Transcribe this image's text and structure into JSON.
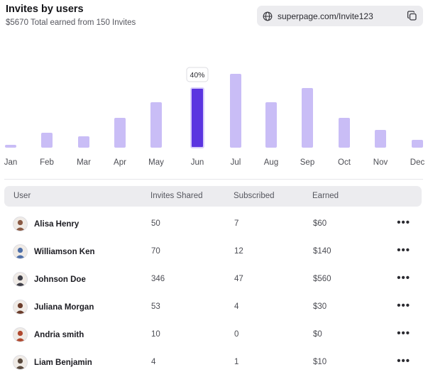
{
  "header": {
    "title": "Invites by users",
    "subtitle": "$5670 Total earned from 150 Invites"
  },
  "invite_link": {
    "url": "superpage.com/Invite123",
    "globe_icon": "globe-icon",
    "copy_icon": "copy-icon"
  },
  "chart_data": {
    "type": "bar",
    "categories": [
      "Jan",
      "Feb",
      "Mar",
      "Apr",
      "May",
      "Jun",
      "Jul",
      "Aug",
      "Sep",
      "Oct",
      "Nov",
      "Dec"
    ],
    "values": [
      4,
      21,
      16,
      42,
      64,
      84,
      104,
      64,
      84,
      42,
      25,
      11
    ],
    "highlight_index": 5,
    "highlight_label": "40%",
    "colors": {
      "bar": "#c9bdf6",
      "highlight": "#5b35e0"
    }
  },
  "table": {
    "headers": {
      "user": "User",
      "invites": "Invites Shared",
      "subscribed": "Subscribed",
      "earned": "Earned"
    },
    "rows": [
      {
        "name": "Alisa Henry",
        "invites": "50",
        "subscribed": "7",
        "earned": "$60",
        "avatar": "#8a5a44",
        "more": "•••"
      },
      {
        "name": "Williamson Ken",
        "invites": "70",
        "subscribed": "12",
        "earned": "$140",
        "avatar": "#4e6fa8",
        "more": "•••"
      },
      {
        "name": "Johnson Doe",
        "invites": "346",
        "subscribed": "47",
        "earned": "$560",
        "avatar": "#3f3f48",
        "more": "•••"
      },
      {
        "name": "Juliana Morgan",
        "invites": "53",
        "subscribed": "4",
        "earned": "$30",
        "avatar": "#6b3d2c",
        "more": "•••"
      },
      {
        "name": "Andria smith",
        "invites": "10",
        "subscribed": "0",
        "earned": "$0",
        "avatar": "#b0492f",
        "more": "•••"
      },
      {
        "name": "Liam Benjamin",
        "invites": "4",
        "subscribed": "1",
        "earned": "$10",
        "avatar": "#5a4a3e",
        "more": "•••"
      }
    ]
  }
}
